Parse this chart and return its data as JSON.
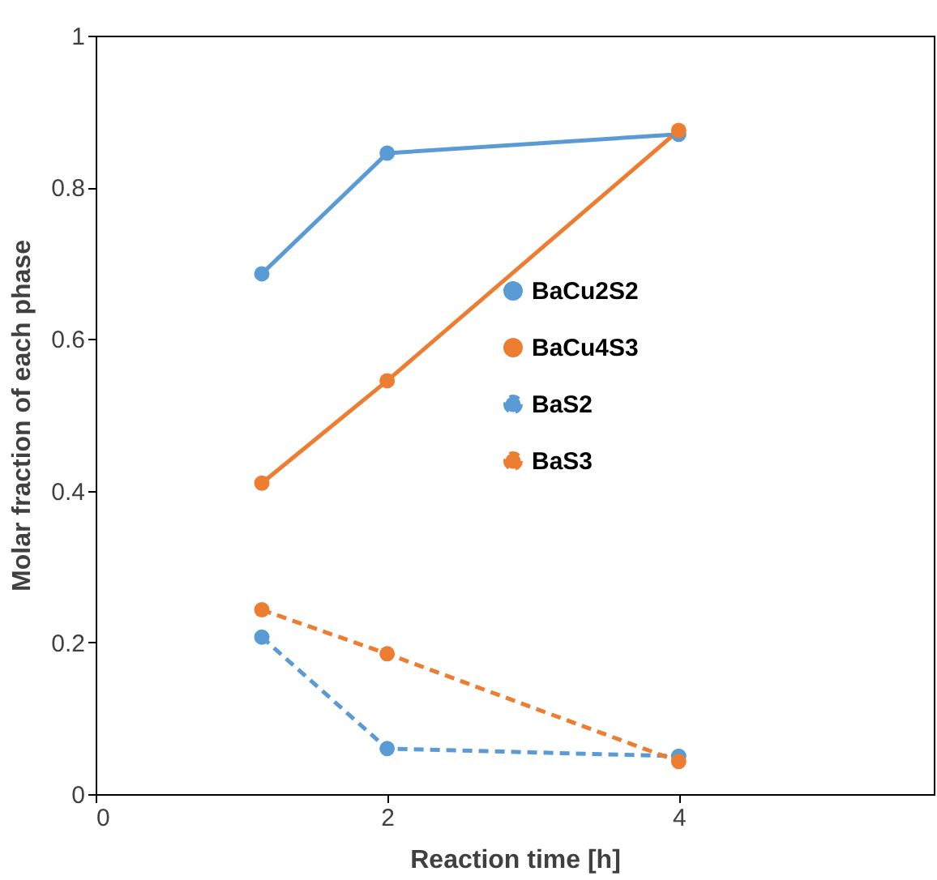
{
  "chart_data": {
    "type": "line",
    "xlabel": "Reaction time [h]",
    "ylabel": "Molar fraction of each phase",
    "x": [
      1.14,
      2,
      4
    ],
    "xlim": [
      0,
      5.75
    ],
    "xticks": [
      0,
      2,
      4
    ],
    "ylim": [
      0,
      1
    ],
    "yticks": [
      0,
      0.2,
      0.4,
      0.6,
      0.8,
      {
        "value": 1,
        "label": "1"
      }
    ],
    "series": [
      {
        "name": "BaCu2S2",
        "color": "#5b9bd5",
        "values": [
          0.686,
          0.845,
          0.87
        ],
        "line_style": "solid"
      },
      {
        "name": "BaCu4S3",
        "color": "#ed7d31",
        "values": [
          0.41,
          0.545,
          0.875
        ],
        "line_style": "solid"
      },
      {
        "name": "BaS2",
        "color": "#5b9bd5",
        "values": [
          0.207,
          0.06,
          0.05
        ],
        "line_style": "dashed"
      },
      {
        "name": "BaS3",
        "color": "#ed7d31",
        "values": [
          0.243,
          0.185,
          0.043
        ],
        "line_style": "dashed"
      }
    ],
    "marker": "circle",
    "grid": false,
    "legend": "right"
  }
}
